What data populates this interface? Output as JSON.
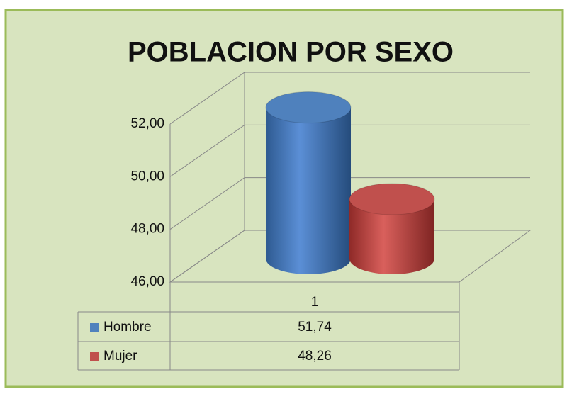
{
  "chart_data": {
    "type": "bar",
    "title": "POBLACION POR SEXO",
    "categories": [
      "1"
    ],
    "series": [
      {
        "name": "Hombre",
        "color": "#4f81bd",
        "values": [
          51.74
        ],
        "value_labels": [
          "51,74"
        ]
      },
      {
        "name": "Mujer",
        "color": "#c0504d",
        "values": [
          48.26
        ],
        "value_labels": [
          "48,26"
        ]
      }
    ],
    "ylim": [
      46,
      52
    ],
    "yticks": [
      {
        "value": 46,
        "label": "46,00"
      },
      {
        "value": 48,
        "label": "48,00"
      },
      {
        "value": 50,
        "label": "50,00"
      },
      {
        "value": 52,
        "label": "52,00"
      }
    ],
    "grid": true
  }
}
